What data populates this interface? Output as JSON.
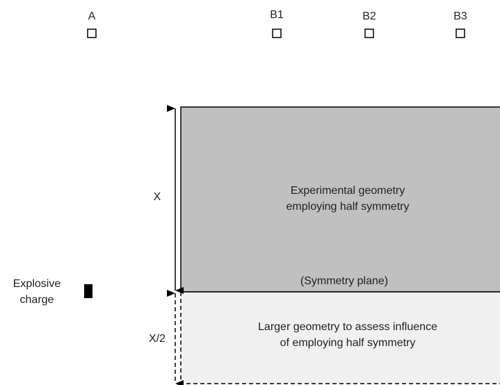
{
  "gauges": [
    "A",
    "B1",
    "B2",
    "B3"
  ],
  "experimental": {
    "lines": [
      "Experimental  geometry",
      "employing  half  symmetry"
    ],
    "plane": "(Symmetry plane)"
  },
  "larger": {
    "lines": [
      "Larger geometry  to assess  influence",
      "of employing  half symmetry"
    ]
  },
  "dimension_full": "X",
  "dimension_half": "X/2",
  "charge": {
    "lines": [
      "Explosive",
      "charge"
    ]
  }
}
